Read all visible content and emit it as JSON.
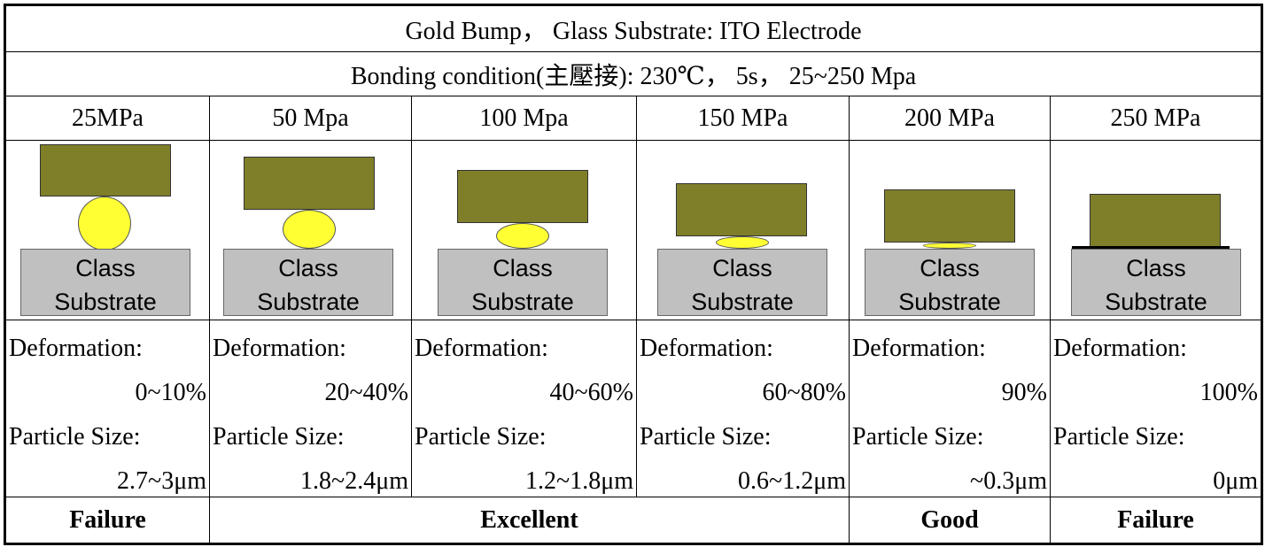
{
  "header": {
    "title": "Gold Bump， Glass Substrate: ITO Electrode",
    "condition": "Bonding condition(主壓接): 230℃， 5s， 25~250 Mpa"
  },
  "columns": [
    {
      "pressure": "25MPa",
      "substrate_line1": "Class",
      "substrate_line2": "Substrate",
      "deformation_label": "Deformation:",
      "deformation": "0~10%",
      "particle_label": "Particle Size:",
      "particle_size": "2.7~3μm"
    },
    {
      "pressure": "50 Mpa",
      "substrate_line1": "Class",
      "substrate_line2": "Substrate",
      "deformation_label": "Deformation:",
      "deformation": "20~40%",
      "particle_label": "Particle Size:",
      "particle_size": "1.8~2.4μm"
    },
    {
      "pressure": "100 Mpa",
      "substrate_line1": "Class",
      "substrate_line2": "Substrate",
      "deformation_label": "Deformation:",
      "deformation": "40~60%",
      "particle_label": "Particle Size:",
      "particle_size": "1.2~1.8μm"
    },
    {
      "pressure": "150 MPa",
      "substrate_line1": "Class",
      "substrate_line2": "Substrate",
      "deformation_label": "Deformation:",
      "deformation": "60~80%",
      "particle_label": "Particle Size:",
      "particle_size": "0.6~1.2μm"
    },
    {
      "pressure": "200 MPa",
      "substrate_line1": "Class",
      "substrate_line2": "Substrate",
      "deformation_label": "Deformation:",
      "deformation": "90%",
      "particle_label": "Particle Size:",
      "particle_size": "~0.3μm"
    },
    {
      "pressure": "250 MPa",
      "substrate_line1": "Class",
      "substrate_line2": "Substrate",
      "deformation_label": "Deformation:",
      "deformation": "100%",
      "particle_label": "Particle Size:",
      "particle_size": "0μm"
    }
  ],
  "verdicts": {
    "col1": "Failure",
    "col2_4": "Excellent",
    "col5": "Good",
    "col6": "Failure"
  },
  "colors": {
    "bump": "#7f7f2a",
    "particle": "#ffff33",
    "glass": "#c0c0c0"
  }
}
